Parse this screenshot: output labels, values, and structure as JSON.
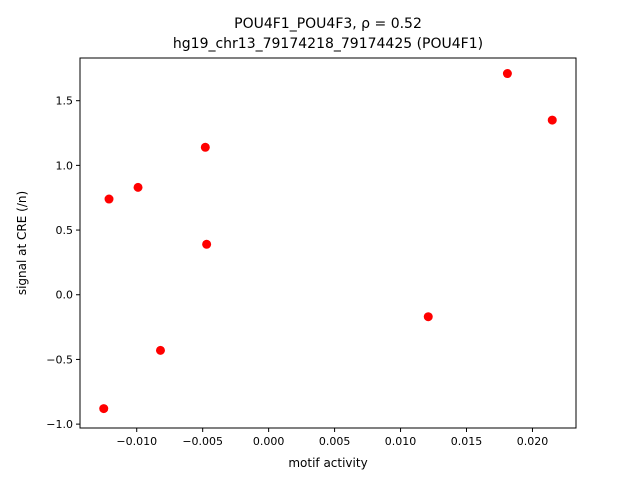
{
  "chart_data": {
    "type": "scatter",
    "title_line1": "POU4F1_POU4F3, ρ = 0.52",
    "title_line2": "hg19_chr13_79174218_79174425 (POU4F1)",
    "xlabel": "motif activity",
    "ylabel": "signal at CRE (/n)",
    "xlim": [
      -0.0143,
      0.0233
    ],
    "ylim": [
      -1.03,
      1.83
    ],
    "x_ticks": [
      -0.01,
      -0.005,
      0.0,
      0.005,
      0.01,
      0.015,
      0.02
    ],
    "x_tick_labels": [
      "−0.010",
      "−0.005",
      "0.000",
      "0.005",
      "0.010",
      "0.015",
      "0.020"
    ],
    "y_ticks": [
      -1.0,
      -0.5,
      0.0,
      0.5,
      1.0,
      1.5
    ],
    "y_tick_labels": [
      "−1.0",
      "−0.5",
      "0.0",
      "0.5",
      "1.0",
      "1.5"
    ],
    "points": [
      {
        "x": -0.0125,
        "y": -0.88
      },
      {
        "x": -0.0121,
        "y": 0.74
      },
      {
        "x": -0.0099,
        "y": 0.83
      },
      {
        "x": -0.0082,
        "y": -0.43
      },
      {
        "x": -0.0048,
        "y": 1.14
      },
      {
        "x": -0.0047,
        "y": 0.39
      },
      {
        "x": 0.0121,
        "y": -0.17
      },
      {
        "x": 0.0181,
        "y": 1.71
      },
      {
        "x": 0.0215,
        "y": 1.35
      }
    ],
    "point_color": "#ff0000",
    "grid": false
  }
}
